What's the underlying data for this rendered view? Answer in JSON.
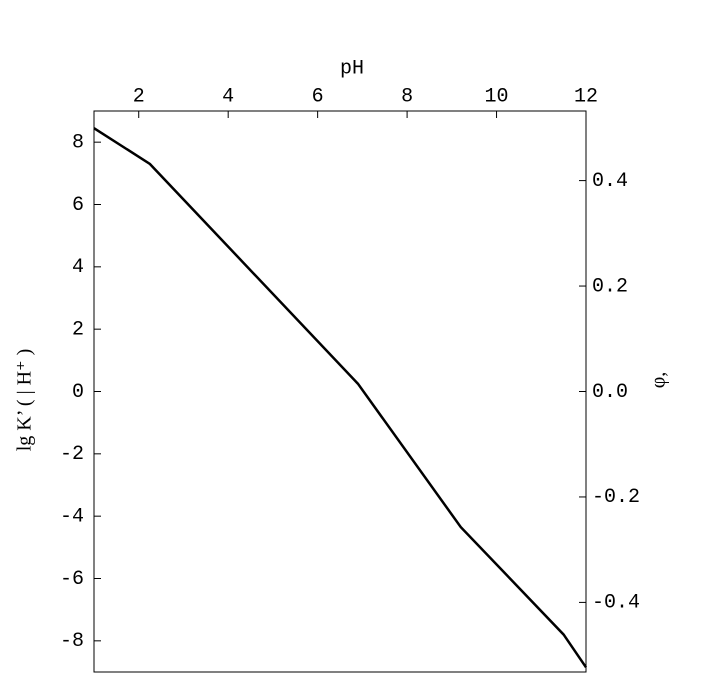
{
  "chart_data": {
    "type": "line",
    "xlabel": "pH",
    "ylabel": "lg K’ ( | H⁺ )",
    "y2label": "φ,",
    "x": [
      1,
      2.25,
      6.9,
      9.2,
      11.5,
      12
    ],
    "series": [
      {
        "color": "#000000",
        "values": [
          8.45,
          7.3,
          0.25,
          -4.35,
          -7.8,
          -8.85
        ]
      }
    ],
    "xlim": [
      1,
      12
    ],
    "xticks": [
      2,
      4,
      6,
      8,
      10,
      12
    ],
    "ylim": [
      -9,
      9
    ],
    "yticks": [
      -8,
      -6,
      -4,
      -2,
      0,
      2,
      4,
      6,
      8
    ],
    "y2lim": [
      -0.532,
      0.532
    ],
    "y2ticks": [
      -0.4,
      -0.2,
      {
        "value": 0,
        "label": "0.0"
      },
      0.2,
      0.4
    ],
    "grid": false
  }
}
